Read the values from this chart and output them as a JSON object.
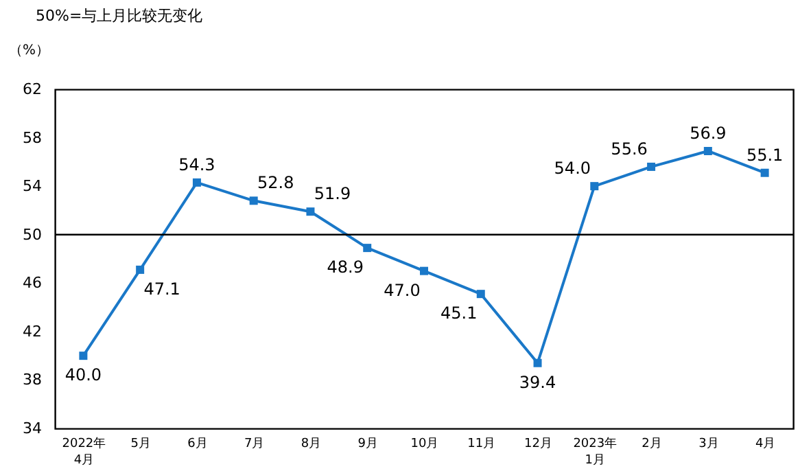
{
  "chart_data": {
    "type": "line",
    "title": "50%=与上月比较无变化",
    "ylabel": "（%）",
    "categories": [
      "2022年\n4月",
      "5月",
      "6月",
      "7月",
      "8月",
      "9月",
      "10月",
      "11月",
      "12月",
      "2023年\n1月",
      "2月",
      "3月",
      "4月"
    ],
    "series": [
      {
        "color": "#1a78c8",
        "values": [
          40.0,
          47.1,
          54.3,
          52.8,
          51.9,
          48.9,
          47.0,
          45.1,
          39.4,
          54.0,
          55.6,
          56.9,
          55.1
        ],
        "value_labels": [
          "40.0",
          "47.1",
          "54.3",
          "52.8",
          "51.9",
          "48.9",
          "47.0",
          "45.1",
          "39.4",
          "54.0",
          "55.6",
          "56.9",
          "55.1"
        ]
      }
    ],
    "ylim": [
      34,
      62
    ],
    "yticks": [
      34,
      38,
      42,
      46,
      50,
      54,
      58,
      62
    ],
    "ref_lines": [
      {
        "axis": "y",
        "value": 50,
        "color": "#000000"
      }
    ],
    "marker": "square",
    "line_style": "solid",
    "grid": false
  }
}
